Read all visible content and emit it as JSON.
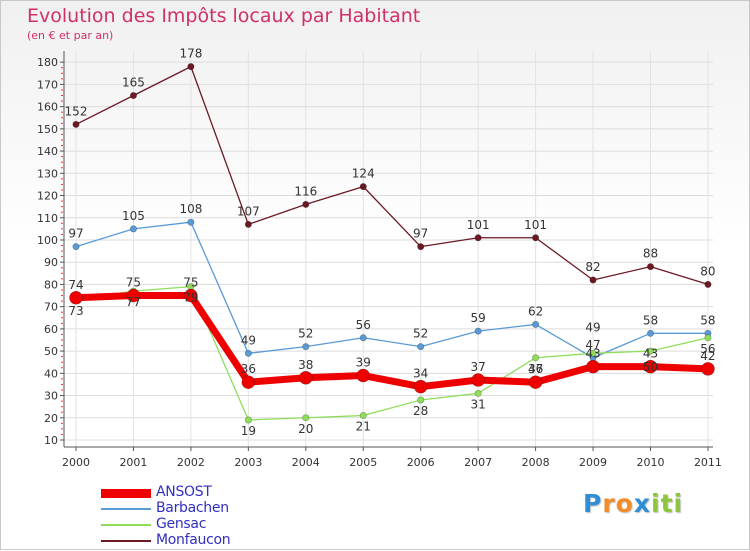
{
  "chart_data": {
    "type": "line",
    "title": "Evolution des Impôts locaux par Habitant",
    "subtitle": "(en € et par an)",
    "xlabel": "",
    "ylabel": "",
    "ylim": [
      10,
      180
    ],
    "yticks": [
      10,
      20,
      30,
      40,
      50,
      60,
      70,
      80,
      90,
      100,
      110,
      120,
      130,
      140,
      150,
      160,
      170,
      180
    ],
    "categories": [
      "2000",
      "2001",
      "2002",
      "2003",
      "2004",
      "2005",
      "2006",
      "2007",
      "2008",
      "2009",
      "2010",
      "2011"
    ],
    "series": [
      {
        "name": "Monfaucon",
        "color": "#6b1a24",
        "values": [
          152,
          165,
          178,
          107,
          116,
          124,
          97,
          101,
          101,
          82,
          88,
          80
        ],
        "dataLabels": true
      },
      {
        "name": "Barbachen",
        "color": "#5b9bd5",
        "values": [
          97,
          105,
          108,
          49,
          52,
          56,
          52,
          59,
          62,
          47,
          58,
          58
        ],
        "dataLabels": true
      },
      {
        "name": "Gensac",
        "color": "#8ede5a",
        "values": [
          73,
          77,
          79,
          19,
          20,
          21,
          28,
          31,
          47,
          49,
          50,
          56
        ],
        "dataLabels": true
      },
      {
        "name": "ANSOST",
        "color": "#ee0000",
        "values": [
          74,
          75,
          75,
          36,
          38,
          39,
          34,
          37,
          36,
          43,
          43,
          42
        ],
        "dataLabels": true
      }
    ],
    "legend": [
      "ANSOST",
      "Barbachen",
      "Gensac",
      "Monfaucon"
    ],
    "legend_position": "bottom-left",
    "grid": true
  },
  "logo": {
    "letters": [
      {
        "ch": "P",
        "color": "#2e8fd6"
      },
      {
        "ch": "r",
        "color": "#f28c28"
      },
      {
        "ch": "o",
        "color": "#f28c28"
      },
      {
        "ch": "x",
        "color": "#2e8fd6"
      },
      {
        "ch": "i",
        "color": "#8cc63f"
      },
      {
        "ch": "t",
        "color": "#8cc63f"
      },
      {
        "ch": "i",
        "color": "#8cc63f"
      }
    ]
  }
}
